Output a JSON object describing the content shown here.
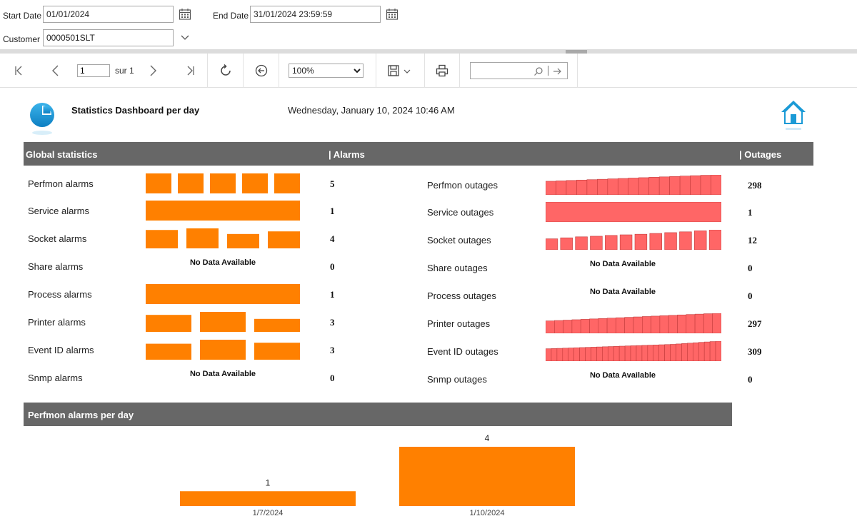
{
  "params": {
    "start_label": "Start Date",
    "start_value": "01/01/2024",
    "end_label": "End Date",
    "end_value": "31/01/2024 23:59:59",
    "customer_label": "Customer",
    "customer_value": "0000501SLT"
  },
  "toolbar": {
    "page_value": "1",
    "page_of": "sur 1",
    "zoom": "100%",
    "search_placeholder": ""
  },
  "report": {
    "title": "Statistics Dashboard per day",
    "datetime": "Wednesday, January 10, 2024 10:46 AM",
    "section_global": "Global statistics",
    "section_alarms": "| Alarms",
    "section_outages": "| Outages",
    "no_data": "No Data Available",
    "alarms": [
      {
        "label": "Perfmon alarms",
        "value": "5",
        "bars": [
          1,
          1,
          1,
          1,
          1
        ]
      },
      {
        "label": "Service alarms",
        "value": "1",
        "bars": [
          1
        ]
      },
      {
        "label": "Socket alarms",
        "value": "4",
        "bars": [
          0.92,
          1,
          0.72,
          0.85
        ]
      },
      {
        "label": "Share alarms",
        "value": "0",
        "bars": []
      },
      {
        "label": "Process alarms",
        "value": "1",
        "bars": [
          1
        ]
      },
      {
        "label": "Printer alarms",
        "value": "3",
        "bars": [
          0.85,
          1,
          0.65
        ]
      },
      {
        "label": "Event ID alarms",
        "value": "3",
        "bars": [
          0.8,
          1,
          0.85
        ]
      },
      {
        "label": "Snmp alarms",
        "value": "0",
        "bars": []
      }
    ],
    "outages": [
      {
        "label": "Perfmon outages",
        "value": "298",
        "bars": [
          0.68,
          0.7,
          0.72,
          0.74,
          0.76,
          0.78,
          0.8,
          0.82,
          0.84,
          0.86,
          0.88,
          0.9,
          0.92,
          0.94,
          0.96,
          0.98,
          1.0
        ]
      },
      {
        "label": "Service outages",
        "value": "1",
        "bars": [
          1
        ]
      },
      {
        "label": "Socket outages",
        "value": "12",
        "bars": [
          0.55,
          0.6,
          0.65,
          0.68,
          0.72,
          0.75,
          0.78,
          0.82,
          0.86,
          0.9,
          0.95,
          1.0
        ]
      },
      {
        "label": "Share outages",
        "value": "0",
        "bars": []
      },
      {
        "label": "Process outages",
        "value": "0",
        "bars": []
      },
      {
        "label": "Printer outages",
        "value": "297",
        "bars": [
          0.62,
          0.64,
          0.66,
          0.68,
          0.7,
          0.72,
          0.74,
          0.76,
          0.78,
          0.8,
          0.82,
          0.84,
          0.86,
          0.88,
          0.9,
          0.92,
          0.94,
          0.96,
          0.98,
          1.0
        ]
      },
      {
        "label": "Event ID outages",
        "value": "309",
        "bars": [
          0.62,
          0.63,
          0.64,
          0.65,
          0.66,
          0.67,
          0.68,
          0.69,
          0.7,
          0.71,
          0.72,
          0.73,
          0.74,
          0.75,
          0.76,
          0.77,
          0.78,
          0.79,
          0.8,
          0.81,
          0.82,
          0.83,
          0.84,
          0.86,
          0.88,
          0.9,
          0.92,
          0.94,
          0.96,
          0.98,
          1.0
        ]
      },
      {
        "label": "Snmp outages",
        "value": "0",
        "bars": []
      }
    ],
    "per_day_title": "Perfmon alarms per day"
  },
  "colors": {
    "alarm": "#ff8000",
    "outage": "#ff6666",
    "band": "#676767",
    "accent": "#1a9ad6"
  },
  "chart_data": {
    "type": "bar",
    "title": "Perfmon alarms per day",
    "categories": [
      "1/7/2024",
      "1/10/2024"
    ],
    "values": [
      1,
      4
    ],
    "ylim": [
      0,
      4
    ]
  }
}
